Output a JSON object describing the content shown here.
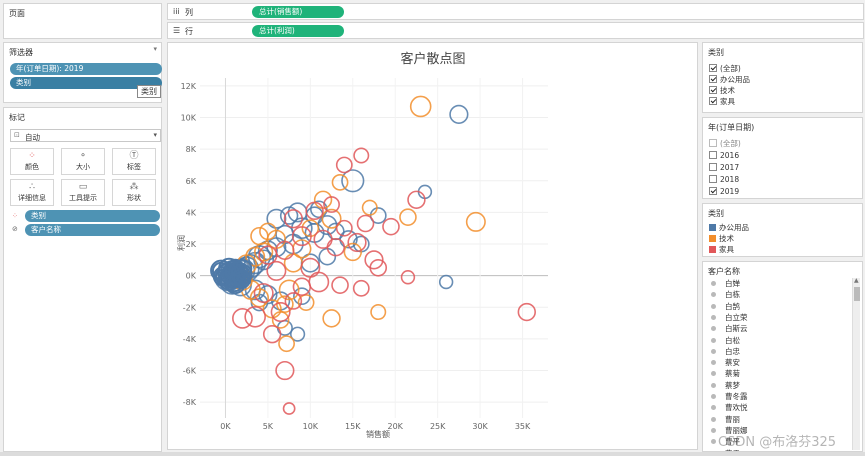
{
  "pages": {
    "title": "页面"
  },
  "filters": {
    "title": "筛选器",
    "items": [
      "年(订单日期): 2019",
      "类别"
    ],
    "tooltip": "类别"
  },
  "marks": {
    "title": "标记",
    "type": "自动",
    "buttons": [
      {
        "label": "颜色",
        "icon": "color-icon"
      },
      {
        "label": "大小",
        "icon": "size-icon"
      },
      {
        "label": "标签",
        "icon": "label-icon"
      },
      {
        "label": "详细信息",
        "icon": "detail-icon"
      },
      {
        "label": "工具提示",
        "icon": "tooltip-icon"
      },
      {
        "label": "形状",
        "icon": "shape-icon"
      }
    ],
    "fields": [
      "类别",
      "客户名称"
    ]
  },
  "shelves": {
    "columns": {
      "icon": "iii",
      "label": "列",
      "pill": "总计(销售额)"
    },
    "rows": {
      "icon": "☰",
      "label": "行",
      "pill": "总计(利润)"
    }
  },
  "legend_category_filter": {
    "title": "类别",
    "items": [
      {
        "label": "(全部)",
        "checked": true
      },
      {
        "label": "办公用品",
        "checked": true
      },
      {
        "label": "技术",
        "checked": true
      },
      {
        "label": "家具",
        "checked": true
      }
    ]
  },
  "legend_year_filter": {
    "title": "年(订单日期)",
    "items": [
      {
        "label": "(全部)",
        "checked": false
      },
      {
        "label": "2016",
        "checked": false
      },
      {
        "label": "2017",
        "checked": false
      },
      {
        "label": "2018",
        "checked": false
      },
      {
        "label": "2019",
        "checked": true
      }
    ]
  },
  "legend_color": {
    "title": "类别",
    "items": [
      {
        "label": "办公用品",
        "color": "#4e79a7"
      },
      {
        "label": "技术",
        "color": "#f28e2b"
      },
      {
        "label": "家具",
        "color": "#e15759"
      }
    ]
  },
  "customer_filter": {
    "title": "客户名称",
    "items": [
      "白婵",
      "白栋",
      "白鹄",
      "白立荣",
      "白斯云",
      "白松",
      "白忠",
      "蔡安",
      "蔡菊",
      "蔡梦",
      "曹冬露",
      "曹欢悦",
      "曹丽",
      "曹丽娜",
      "曹平",
      "曹雪"
    ]
  },
  "watermark": "CSDN @布洛芬325",
  "chart_data": {
    "type": "scatter",
    "title": "客户散点图",
    "xlabel": "销售额",
    "ylabel": "利润",
    "xlim": [
      -3000,
      38000
    ],
    "ylim": [
      -9000,
      12500
    ],
    "xticks": [
      "0K",
      "5K",
      "10K",
      "15K",
      "20K",
      "25K",
      "30K",
      "35K"
    ],
    "xtick_values": [
      0,
      5000,
      10000,
      15000,
      20000,
      25000,
      30000,
      35000
    ],
    "yticks": [
      "12K",
      "10K",
      "8K",
      "6K",
      "4K",
      "2K",
      "0K",
      "-2K",
      "-4K",
      "-6K",
      "-8K"
    ],
    "ytick_values": [
      12000,
      10000,
      8000,
      6000,
      4000,
      2000,
      0,
      -2000,
      -4000,
      -6000,
      -8000
    ],
    "series": [
      {
        "name": "办公用品",
        "color": "#4e79a7",
        "points": [
          [
            27500,
            10200,
            1.2
          ],
          [
            15000,
            6000,
            1.7
          ],
          [
            23500,
            5300,
            0.6
          ],
          [
            18000,
            3800,
            0.9
          ],
          [
            26000,
            -400,
            0.6
          ],
          [
            12000,
            3200,
            1.3
          ],
          [
            10500,
            2700,
            1.3
          ],
          [
            11000,
            4200,
            1.0
          ],
          [
            9000,
            3000,
            1.5
          ],
          [
            8000,
            2000,
            1.4
          ],
          [
            7000,
            2600,
            1.2
          ],
          [
            6000,
            1800,
            1.3
          ],
          [
            5000,
            1600,
            1.3
          ],
          [
            4500,
            1000,
            1.4
          ],
          [
            4000,
            1200,
            1.7
          ],
          [
            3500,
            800,
            1.6
          ],
          [
            3000,
            600,
            1.8
          ],
          [
            2500,
            400,
            2.0
          ],
          [
            2000,
            300,
            2.0
          ],
          [
            1500,
            200,
            2.2
          ],
          [
            1000,
            100,
            2.4
          ],
          [
            600,
            0,
            2.5
          ],
          [
            300,
            -100,
            2.3
          ],
          [
            800,
            -400,
            2.0
          ],
          [
            1800,
            -600,
            1.6
          ],
          [
            3500,
            -900,
            1.4
          ],
          [
            5000,
            -1200,
            1.2
          ],
          [
            6500,
            -1600,
            1.2
          ],
          [
            7000,
            -3300,
            0.8
          ],
          [
            8500,
            -3700,
            0.7
          ],
          [
            9000,
            -1300,
            1.0
          ],
          [
            4000,
            -1700,
            1.0
          ],
          [
            13000,
            2800,
            1.0
          ],
          [
            14500,
            2300,
            1.1
          ],
          [
            16000,
            2000,
            0.9
          ],
          [
            10000,
            800,
            1.2
          ],
          [
            12000,
            1200,
            1.0
          ],
          [
            6000,
            3600,
            1.3
          ],
          [
            7500,
            3800,
            1.1
          ],
          [
            8500,
            4000,
            1.3
          ],
          [
            10500,
            3800,
            1.1
          ]
        ]
      },
      {
        "name": "技术",
        "color": "#f28e2b",
        "points": [
          [
            23000,
            10700,
            1.5
          ],
          [
            29500,
            3400,
            1.3
          ],
          [
            21500,
            3700,
            1.0
          ],
          [
            17000,
            4300,
            0.8
          ],
          [
            13500,
            5900,
            0.9
          ],
          [
            11500,
            4800,
            1.1
          ],
          [
            12500,
            3600,
            1.3
          ],
          [
            10000,
            3000,
            1.0
          ],
          [
            9000,
            1700,
            1.2
          ],
          [
            8000,
            800,
            1.2
          ],
          [
            7500,
            -900,
            1.4
          ],
          [
            7000,
            -1800,
            1.0
          ],
          [
            6500,
            -2800,
            1.0
          ],
          [
            7200,
            -4300,
            0.9
          ],
          [
            5500,
            -2100,
            1.2
          ],
          [
            4000,
            -1400,
            1.2
          ],
          [
            3000,
            -900,
            1.3
          ],
          [
            2000,
            -300,
            1.4
          ],
          [
            1500,
            100,
            1.5
          ],
          [
            2500,
            700,
            1.4
          ],
          [
            3500,
            1200,
            1.3
          ],
          [
            4500,
            1500,
            1.2
          ],
          [
            6000,
            2300,
            1.2
          ],
          [
            5000,
            2800,
            1.0
          ],
          [
            4000,
            2500,
            1.1
          ],
          [
            12500,
            -2700,
            1.1
          ],
          [
            9500,
            -1700,
            0.9
          ],
          [
            15000,
            1500,
            1.1
          ],
          [
            18000,
            -2300,
            0.8
          ]
        ]
      },
      {
        "name": "家具",
        "color": "#e15759",
        "points": [
          [
            35500,
            -2300,
            1.1
          ],
          [
            22500,
            4800,
            1.1
          ],
          [
            16000,
            7600,
            0.8
          ],
          [
            14000,
            7000,
            0.9
          ],
          [
            21500,
            -100,
            0.6
          ],
          [
            17500,
            1000,
            1.2
          ],
          [
            16000,
            -800,
            0.9
          ],
          [
            13500,
            -600,
            1.0
          ],
          [
            11000,
            -400,
            1.4
          ],
          [
            10000,
            500,
            1.3
          ],
          [
            9000,
            -700,
            1.1
          ],
          [
            8000,
            -1600,
            1.0
          ],
          [
            7000,
            -6000,
            1.2
          ],
          [
            5500,
            -3700,
            1.1
          ],
          [
            3500,
            -2600,
            1.5
          ],
          [
            2000,
            -2700,
            1.4
          ],
          [
            4500,
            -1100,
            1.3
          ],
          [
            6000,
            300,
            1.3
          ],
          [
            5000,
            1300,
            1.2
          ],
          [
            7000,
            1600,
            1.2
          ],
          [
            9000,
            2500,
            1.3
          ],
          [
            11500,
            2300,
            1.2
          ],
          [
            13000,
            1800,
            1.1
          ],
          [
            15500,
            2100,
            1.2
          ],
          [
            16500,
            3300,
            1.0
          ],
          [
            19500,
            3100,
            1.0
          ],
          [
            8000,
            3600,
            1.2
          ],
          [
            10500,
            4100,
            1.1
          ],
          [
            12500,
            4500,
            0.9
          ],
          [
            7500,
            -8400,
            0.4
          ],
          [
            6500,
            -2300,
            1.3
          ],
          [
            14000,
            3000,
            0.9
          ],
          [
            18000,
            500,
            1.0
          ]
        ]
      }
    ]
  }
}
